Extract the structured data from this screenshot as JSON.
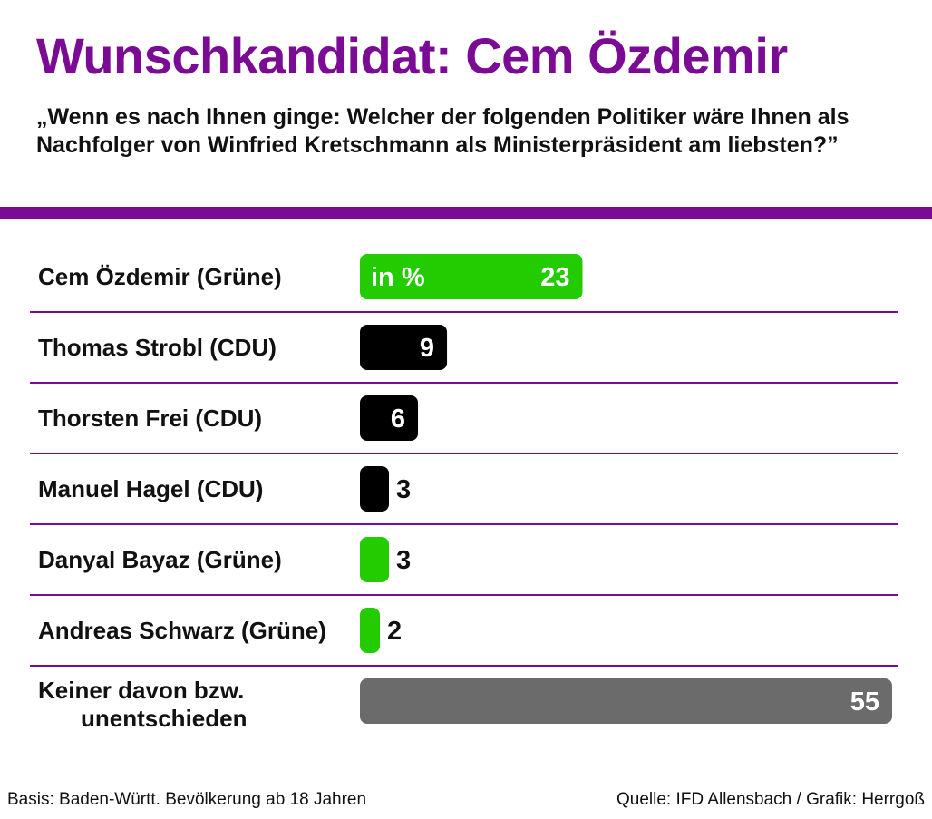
{
  "header": {
    "title": "Wunschkandidat: Cem Özdemir",
    "subtitle": "„Wenn es nach Ihnen ginge: Welcher der folgenden Politiker wäre Ihnen als Nachfolger von Winfried Kretschmann als Ministerpräsident am liebsten?”"
  },
  "chart_data": {
    "type": "bar",
    "orientation": "horizontal",
    "unit_label": "in %",
    "categories": [
      [
        "Cem Özdemir (Grüne)"
      ],
      [
        "Thomas Strobl (CDU)"
      ],
      [
        "Thorsten Frei (CDU)"
      ],
      [
        "Manuel Hagel (CDU)"
      ],
      [
        "Danyal Bayaz (Grüne)"
      ],
      [
        "Andreas Schwarz (Grüne)"
      ],
      [
        "Keiner davon bzw.",
        "unentschieden"
      ]
    ],
    "values": [
      23,
      9,
      6,
      3,
      3,
      2,
      55
    ],
    "bar_colors": [
      "#22cc00",
      "#000000",
      "#000000",
      "#000000",
      "#22cc00",
      "#22cc00",
      "#6b6b6b"
    ],
    "xlim": [
      0,
      55
    ],
    "grid": false,
    "divider_color": "#7b0a94"
  },
  "footer": {
    "basis": "Basis: Baden-Württ. Bevölkerung ab 18 Jahren",
    "source": "Quelle: IFD Allensbach / Grafik: Herrgoß"
  }
}
